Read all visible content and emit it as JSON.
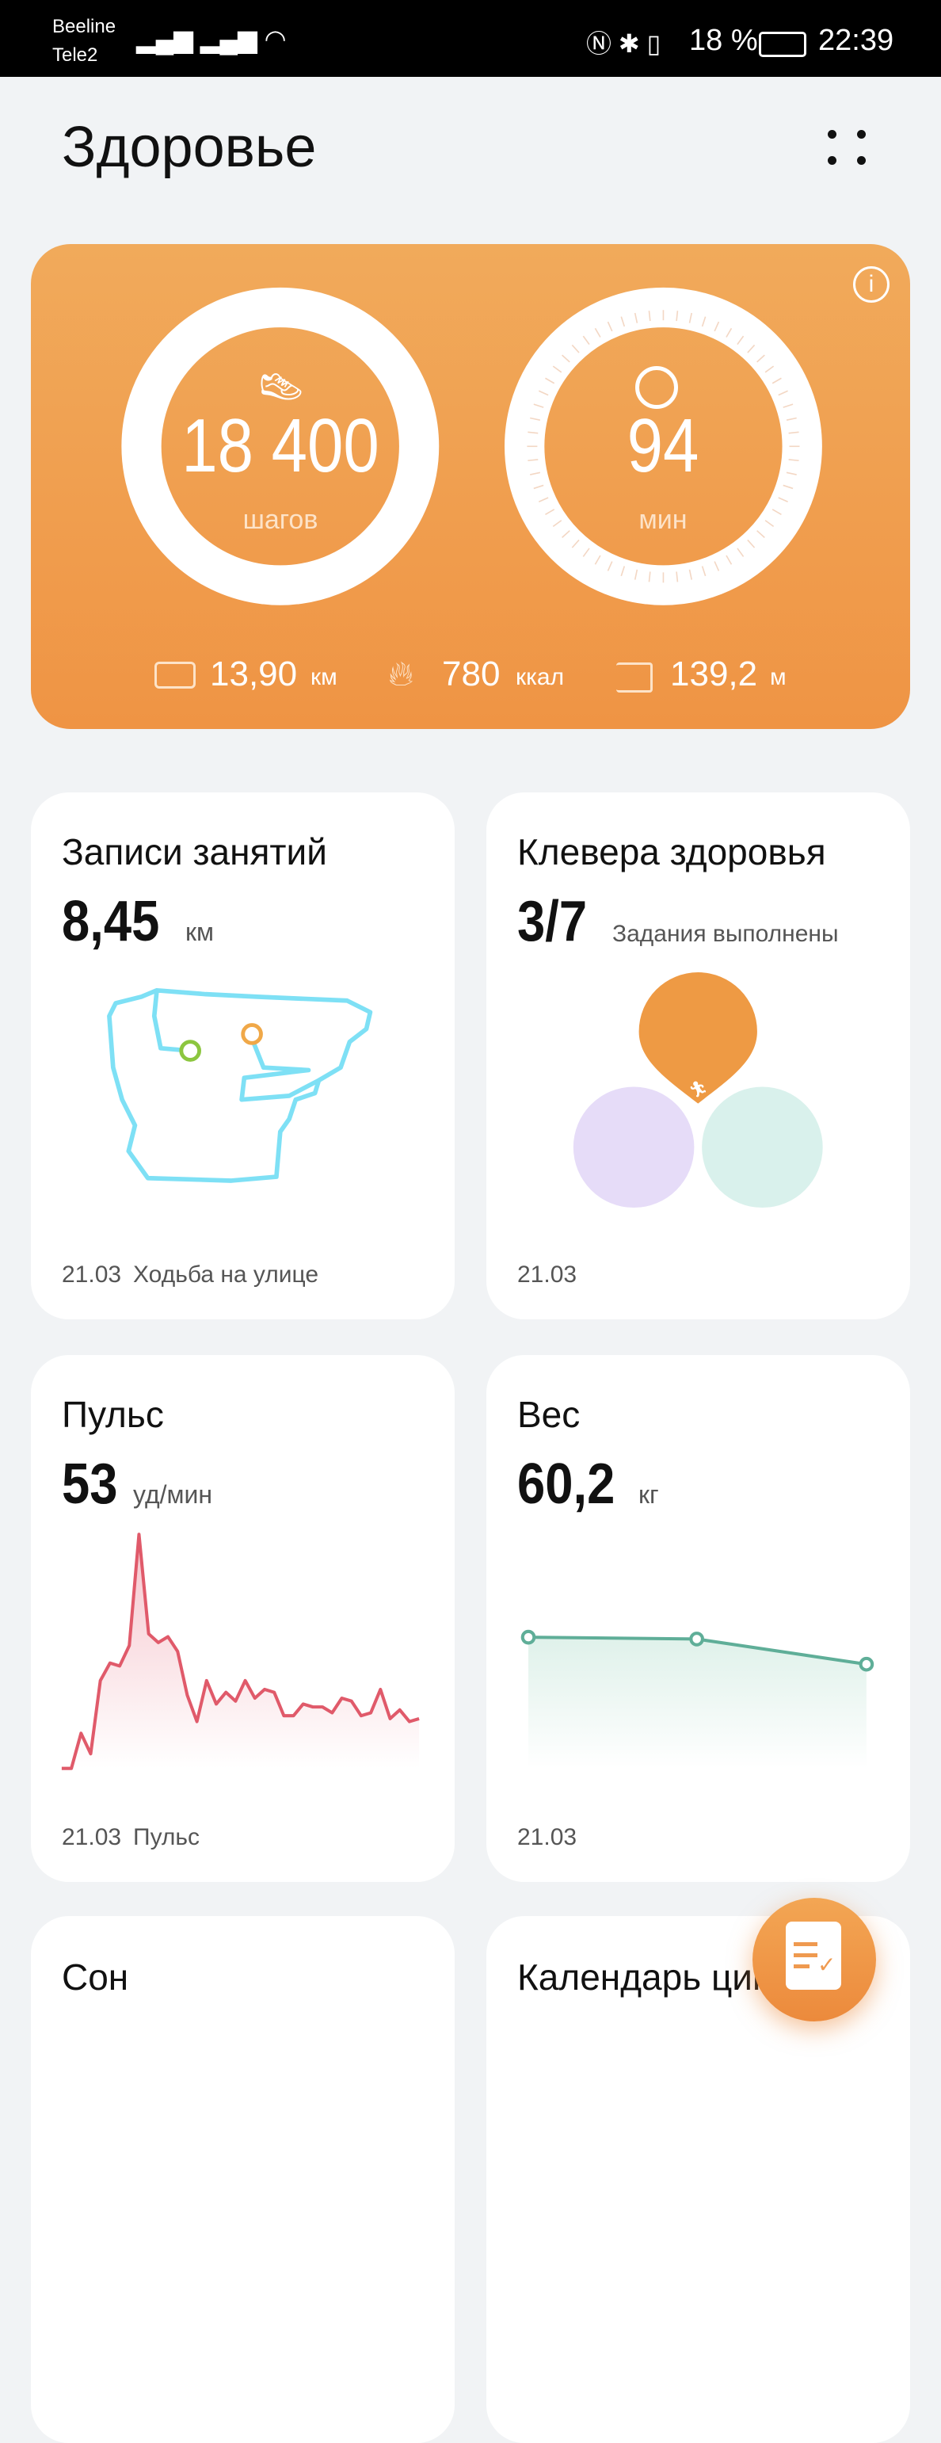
{
  "status_bar": {
    "carrier1": "Beeline",
    "carrier2": "Tele2",
    "battery": "18 %",
    "time": "22:39"
  },
  "header": {
    "title": "Здоровье",
    "more_icon": "more-dots-icon"
  },
  "activity": {
    "steps": {
      "value": "18 400",
      "unit": "шагов",
      "icon": "shoe-icon",
      "progress": 0.95
    },
    "minutes": {
      "value": "94",
      "unit": "мин",
      "icon": "stopwatch-icon",
      "progress": 0.15
    },
    "distance": {
      "value": "13,90",
      "unit": "км",
      "icon": "ruler-icon"
    },
    "calories": {
      "value": "780",
      "unit": "ккал",
      "icon": "flame-icon"
    },
    "climb": {
      "value": "139,2",
      "unit": "м",
      "icon": "stairs-icon"
    },
    "info_icon": "info-icon"
  },
  "cards": {
    "workouts": {
      "title": "Записи занятий",
      "value": "8,45",
      "unit": "км",
      "date": "21.03",
      "label": "Ходьба на улице",
      "route_color": "#7ee0f5"
    },
    "clover": {
      "title": "Клевера здоровья",
      "value": "3/7",
      "unit": "Задания выполнены",
      "date": "21.03",
      "colors": [
        "#ee9a44",
        "#e6dcf8",
        "#d9f1ec"
      ]
    },
    "pulse": {
      "title": "Пульс",
      "value": "53",
      "unit": "уд/мин",
      "date": "21.03",
      "label": "Пульс",
      "color": "#e05a6a",
      "series": [
        50,
        50,
        62,
        55,
        80,
        86,
        85,
        92,
        130,
        96,
        93,
        95,
        90,
        75,
        66,
        80,
        72,
        76,
        73,
        80,
        74,
        77,
        76,
        68,
        68,
        72,
        71,
        71,
        69,
        74,
        73,
        68,
        69,
        77,
        67,
        70,
        66,
        67
      ]
    },
    "weight": {
      "title": "Вес",
      "value": "60,2",
      "unit": "кг",
      "date": "21.03",
      "color": "#5fae98",
      "series": [
        60.5,
        60.48,
        60.2
      ]
    },
    "sleep": {
      "title": "Сон"
    },
    "cycle": {
      "title": "Календарь цикла"
    }
  },
  "fab": {
    "icon": "checklist-icon"
  }
}
